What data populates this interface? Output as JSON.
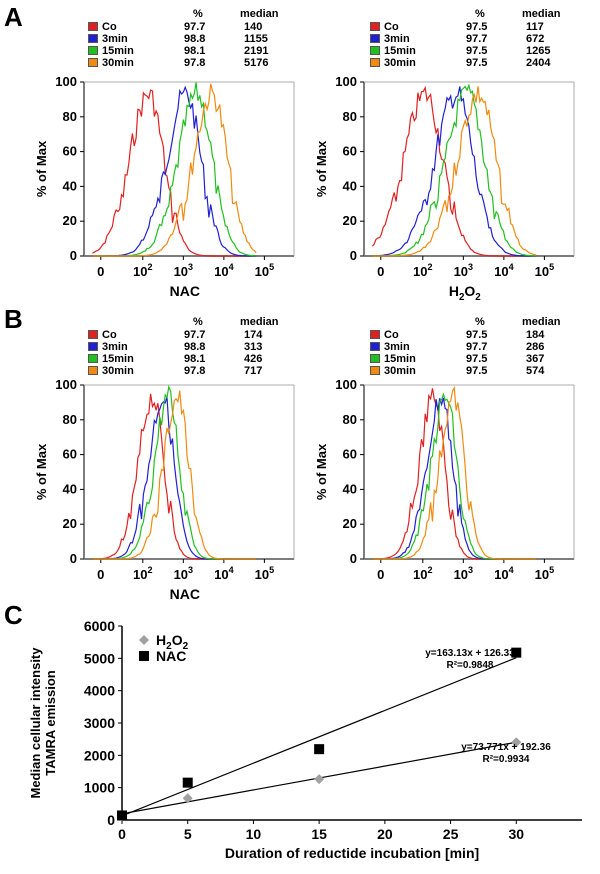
{
  "panels": {
    "A": "A",
    "B": "B",
    "C": "C"
  },
  "colors": {
    "Co": "#e02020",
    "3min": "#2020d0",
    "15min": "#20c020",
    "30min": "#f08a10"
  },
  "chart_data": [
    {
      "id": "A-NAC",
      "type": "line",
      "xlabel": "NAC",
      "ylabel": "% of Max",
      "xscale": "biexponential-log",
      "xticks": [
        "0",
        "10^2",
        "10^3",
        "10^4",
        "10^5"
      ],
      "yticks": [
        "0",
        "20",
        "40",
        "60",
        "80",
        "100"
      ],
      "ylim": [
        0,
        100
      ],
      "legend_headers": {
        "pct": "%",
        "median": "median"
      },
      "series": [
        {
          "name": "Co",
          "pct": "97.7",
          "median": "140"
        },
        {
          "name": "3min",
          "pct": "98.8",
          "median": "1155"
        },
        {
          "name": "15min",
          "pct": "98.1",
          "median": "2191"
        },
        {
          "name": "30min",
          "pct": "97.8",
          "median": "5176"
        }
      ]
    },
    {
      "id": "A-H2O2",
      "type": "line",
      "xlabel": "H2O2",
      "ylabel": "% of Max",
      "xscale": "biexponential-log",
      "xticks": [
        "0",
        "10^2",
        "10^3",
        "10^4",
        "10^5"
      ],
      "yticks": [
        "0",
        "20",
        "40",
        "60",
        "80",
        "100"
      ],
      "ylim": [
        0,
        100
      ],
      "legend_headers": {
        "pct": "%",
        "median": "median"
      },
      "series": [
        {
          "name": "Co",
          "pct": "97.5",
          "median": "117"
        },
        {
          "name": "3min",
          "pct": "97.7",
          "median": "672"
        },
        {
          "name": "15min",
          "pct": "97.5",
          "median": "1265"
        },
        {
          "name": "30min",
          "pct": "97.5",
          "median": "2404"
        }
      ]
    },
    {
      "id": "B-NAC",
      "type": "line",
      "xlabel": "NAC",
      "ylabel": "% of Max",
      "xscale": "biexponential-log",
      "xticks": [
        "0",
        "10^2",
        "10^3",
        "10^4",
        "10^5"
      ],
      "yticks": [
        "0",
        "20",
        "40",
        "60",
        "80",
        "100"
      ],
      "ylim": [
        0,
        100
      ],
      "legend_headers": {
        "pct": "%",
        "median": "median"
      },
      "series": [
        {
          "name": "Co",
          "pct": "97.7",
          "median": "174"
        },
        {
          "name": "3min",
          "pct": "98.8",
          "median": "313"
        },
        {
          "name": "15min",
          "pct": "98.1",
          "median": "426"
        },
        {
          "name": "30min",
          "pct": "97.8",
          "median": "717"
        }
      ]
    },
    {
      "id": "B-right",
      "type": "line",
      "xlabel": "",
      "ylabel": "% of Max",
      "xscale": "biexponential-log",
      "xticks": [
        "0",
        "10^2",
        "10^3",
        "10^4",
        "10^5"
      ],
      "yticks": [
        "0",
        "20",
        "40",
        "60",
        "80",
        "100"
      ],
      "ylim": [
        0,
        100
      ],
      "legend_headers": {
        "pct": "%",
        "median": "median"
      },
      "series": [
        {
          "name": "Co",
          "pct": "97.5",
          "median": "184"
        },
        {
          "name": "3min",
          "pct": "97.7",
          "median": "286"
        },
        {
          "name": "15min",
          "pct": "97.5",
          "median": "367"
        },
        {
          "name": "30min",
          "pct": "97.5",
          "median": "574"
        }
      ]
    },
    {
      "id": "C",
      "type": "scatter",
      "xlabel": "Duration of reductide incubation [min]",
      "ylabel": "Median cellular intensity\nTAMRA emission",
      "xlim": [
        0,
        35
      ],
      "ylim": [
        0,
        6000
      ],
      "xticks": [
        "0",
        "5",
        "10",
        "15",
        "20",
        "25",
        "30"
      ],
      "yticks": [
        "0",
        "1000",
        "2000",
        "3000",
        "4000",
        "5000",
        "6000"
      ],
      "legend": "top-left",
      "series": [
        {
          "name": "H2O2",
          "marker": "diamond",
          "color": "#a0a0a0",
          "x": [
            0,
            5,
            15,
            30
          ],
          "y": [
            117,
            672,
            1265,
            2404
          ],
          "fit": {
            "slope": 73.771,
            "intercept": 192.36,
            "equation": "y=73.771x + 192.36",
            "r2": "R²=0.9934"
          }
        },
        {
          "name": "NAC",
          "marker": "square",
          "color": "#000000",
          "x": [
            0,
            5,
            15,
            30
          ],
          "y": [
            140,
            1155,
            2191,
            5176
          ],
          "fit": {
            "slope": 163.13,
            "intercept": 126.33,
            "equation": "y=163.13x + 126.33",
            "r2": "R²=0.9848"
          }
        }
      ]
    }
  ]
}
